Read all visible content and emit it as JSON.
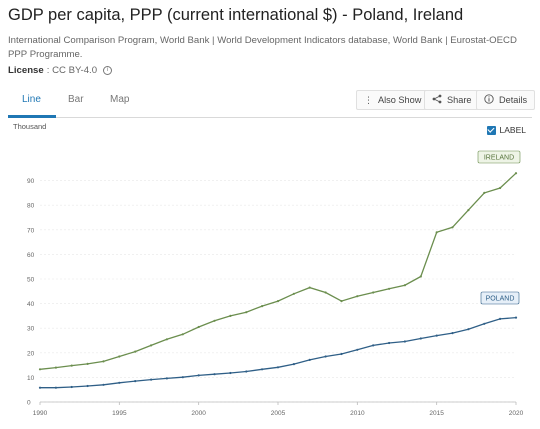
{
  "header": {
    "title": "GDP per capita, PPP (current international $) - Poland, Ireland",
    "source": "International Comparison Program, World Bank | World Development Indicators database, World Bank | Eurostat-OECD PPP Programme.",
    "license_label": "License",
    "license_value": ": CC BY-4.0",
    "info_icon": "info-circle-icon"
  },
  "tabs": [
    {
      "label": "Line",
      "active": true
    },
    {
      "label": "Bar",
      "active": false
    },
    {
      "label": "Map",
      "active": false
    }
  ],
  "toolbar": {
    "also_show": "Also Show",
    "share": "Share",
    "details": "Details"
  },
  "label_toggle": {
    "text": "LABEL",
    "checked": true
  },
  "colors": {
    "ireland": "#6b8e4e",
    "poland": "#2f5f87",
    "accent": "#1f77b4",
    "grid": "#e8e8e8"
  },
  "chart_data": {
    "type": "line",
    "ylabel": "Thousand",
    "xlabel": "",
    "xlim": [
      1990,
      2020
    ],
    "ylim": [
      0,
      100
    ],
    "x_ticks": [
      1990,
      1995,
      2000,
      2005,
      2010,
      2015,
      2020
    ],
    "y_ticks": [
      0,
      10,
      20,
      30,
      40,
      50,
      60,
      70,
      80,
      90
    ],
    "x": [
      1990,
      1991,
      1992,
      1993,
      1994,
      1995,
      1996,
      1997,
      1998,
      1999,
      2000,
      2001,
      2002,
      2003,
      2004,
      2005,
      2006,
      2007,
      2008,
      2009,
      2010,
      2011,
      2012,
      2013,
      2014,
      2015,
      2016,
      2017,
      2018,
      2019,
      2020
    ],
    "series": [
      {
        "name": "IRELAND",
        "values": [
          13.3,
          14.0,
          14.8,
          15.5,
          16.5,
          18.5,
          20.5,
          23.0,
          25.5,
          27.5,
          30.5,
          33.0,
          35.0,
          36.5,
          39.0,
          41.0,
          44.0,
          46.5,
          44.5,
          41.0,
          43.0,
          44.5,
          46.0,
          47.5,
          51.0,
          69.0,
          71.0,
          78.0,
          85.0,
          87.0,
          93.0
        ],
        "color": "#6b8e4e",
        "label": "IRELAND"
      },
      {
        "name": "POLAND",
        "values": [
          5.8,
          5.8,
          6.1,
          6.5,
          7.0,
          7.8,
          8.5,
          9.1,
          9.6,
          10.1,
          10.8,
          11.3,
          11.8,
          12.4,
          13.3,
          14.1,
          15.4,
          17.1,
          18.5,
          19.5,
          21.2,
          23.0,
          24.0,
          24.6,
          25.8,
          27.0,
          28.0,
          29.6,
          31.8,
          33.8,
          34.3
        ],
        "color": "#2f5f87",
        "label": "POLAND"
      }
    ]
  }
}
